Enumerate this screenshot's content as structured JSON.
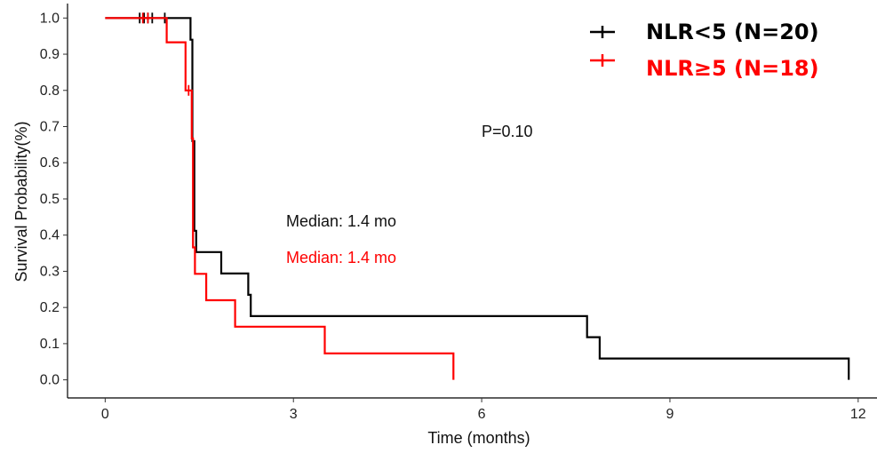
{
  "chart_data": {
    "type": "line",
    "subtype": "kaplan-meier step",
    "xlabel": "Time (months)",
    "ylabel": "Survival Probability(%)",
    "xlim": [
      -0.6,
      12.3
    ],
    "ylim": [
      -0.05,
      1.04
    ],
    "xticks": [
      0,
      3,
      6,
      9,
      12
    ],
    "xtick_labels": [
      "0",
      "3",
      "6",
      "9",
      "12"
    ],
    "yticks": [
      0.0,
      0.1,
      0.2,
      0.3,
      0.4,
      0.5,
      0.6,
      0.7,
      0.8,
      0.9,
      1.0
    ],
    "ytick_labels": [
      "0.0",
      "0.1",
      "0.2",
      "0.3",
      "0.4",
      "0.5",
      "0.6",
      "0.7",
      "0.8",
      "0.9",
      "1.0"
    ],
    "grid": false,
    "legend_position": "top-right",
    "series": [
      {
        "name": "NLR<5 (N=20)",
        "color": "#000000",
        "steps": [
          [
            0,
            1.0
          ],
          [
            1.36,
            1.0
          ],
          [
            1.36,
            0.94
          ],
          [
            1.39,
            0.94
          ],
          [
            1.39,
            0.66
          ],
          [
            1.42,
            0.66
          ],
          [
            1.42,
            0.412
          ],
          [
            1.45,
            0.412
          ],
          [
            1.45,
            0.353
          ],
          [
            1.85,
            0.353
          ],
          [
            1.85,
            0.294
          ],
          [
            2.28,
            0.294
          ],
          [
            2.28,
            0.235
          ],
          [
            2.32,
            0.235
          ],
          [
            2.32,
            0.176
          ],
          [
            7.68,
            0.176
          ],
          [
            7.68,
            0.118
          ],
          [
            7.88,
            0.118
          ],
          [
            7.88,
            0.059
          ],
          [
            11.85,
            0.059
          ],
          [
            11.85,
            0.0
          ]
        ],
        "censored": [
          [
            0.55,
            1.0
          ],
          [
            0.62,
            1.0
          ],
          [
            0.68,
            1.0
          ],
          [
            0.75,
            1.0
          ],
          [
            0.95,
            1.0
          ]
        ]
      },
      {
        "name": "NLR≥5 (N=18)",
        "color": "#ff0000",
        "steps": [
          [
            0,
            1.0
          ],
          [
            0.98,
            1.0
          ],
          [
            0.98,
            0.933
          ],
          [
            1.28,
            0.933
          ],
          [
            1.28,
            0.8
          ],
          [
            1.38,
            0.8
          ],
          [
            1.38,
            0.667
          ],
          [
            1.4,
            0.667
          ],
          [
            1.4,
            0.366
          ],
          [
            1.43,
            0.366
          ],
          [
            1.43,
            0.293
          ],
          [
            1.61,
            0.293
          ],
          [
            1.61,
            0.22
          ],
          [
            2.07,
            0.22
          ],
          [
            2.07,
            0.147
          ],
          [
            3.5,
            0.147
          ],
          [
            3.5,
            0.073
          ],
          [
            5.55,
            0.073
          ],
          [
            5.55,
            0.0
          ]
        ],
        "censored": [
          [
            0.6,
            1.0
          ],
          [
            0.68,
            1.0
          ],
          [
            1.33,
            0.8
          ]
        ]
      }
    ],
    "annotations": {
      "p_value": "P=0.10",
      "median_1": "Median: 1.4 mo",
      "median_2": "Median: 1.4 mo"
    },
    "legend": [
      {
        "label": "NLR<5 (N=20)",
        "color": "#000000"
      },
      {
        "label": "NLR≥5 (N=18)",
        "color": "#ff0000"
      }
    ]
  }
}
